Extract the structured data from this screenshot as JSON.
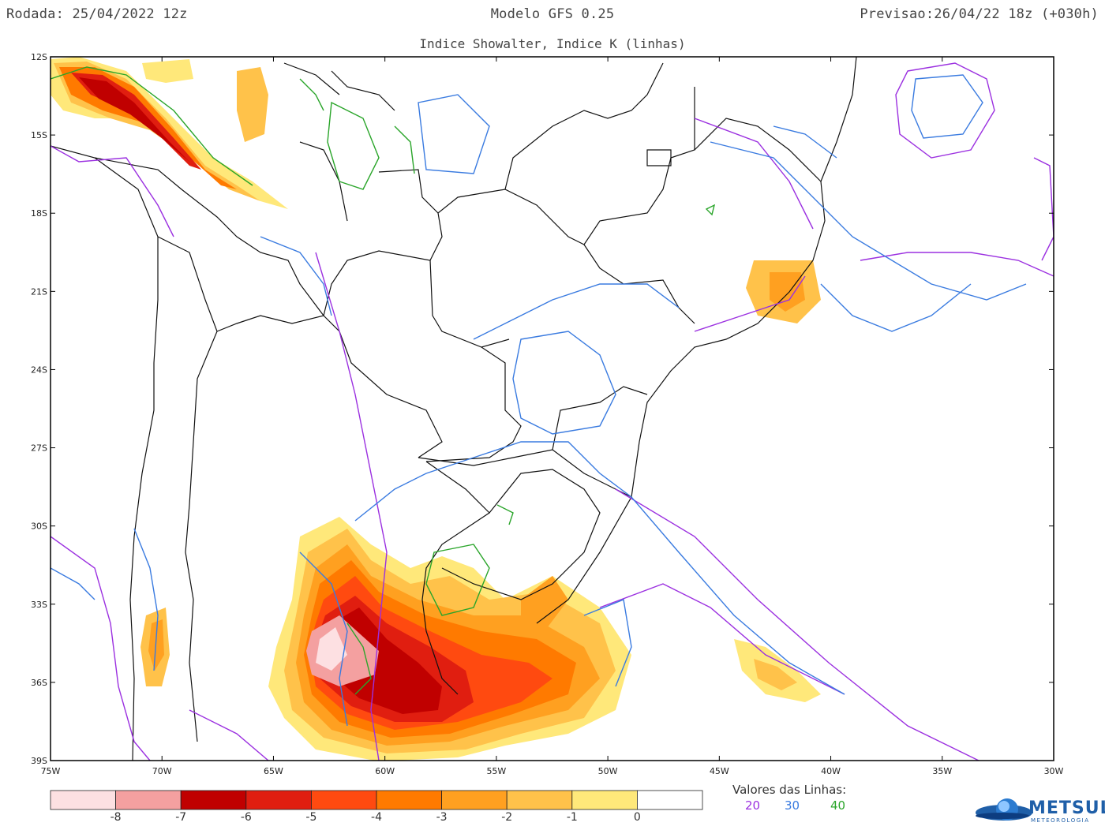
{
  "header": {
    "left": "Rodada: 25/04/2022 12z",
    "center": "Modelo GFS 0.25",
    "right": "Previsao:26/04/22 18z (+030h)",
    "subtitle": "Indice Showalter, Indice K (linhas)"
  },
  "axes": {
    "lat_labels": [
      "12S",
      "15S",
      "18S",
      "21S",
      "24S",
      "27S",
      "30S",
      "33S",
      "36S",
      "39S"
    ],
    "lon_labels": [
      "75W",
      "70W",
      "65W",
      "60W",
      "55W",
      "50W",
      "45W",
      "40W",
      "35W",
      "30W"
    ]
  },
  "colorbar": {
    "colors": [
      "#fde0e2",
      "#f4a0a0",
      "#c00000",
      "#e01e10",
      "#ff4a10",
      "#ff7a00",
      "#ffa020",
      "#ffc24a",
      "#ffe87a",
      "#ffffff"
    ],
    "labels": [
      "-8",
      "-7",
      "-6",
      "-5",
      "-4",
      "-3",
      "-2",
      "-1",
      "0"
    ]
  },
  "line_legend": {
    "title": "Valores das Linhas:",
    "items": [
      {
        "value": "20",
        "color": "#9b30e0"
      },
      {
        "value": "30",
        "color": "#3a7be0"
      },
      {
        "value": "40",
        "color": "#2aa52a"
      }
    ]
  },
  "logo": {
    "name": "METSUL",
    "sub": "METEOROLOGIA"
  }
}
